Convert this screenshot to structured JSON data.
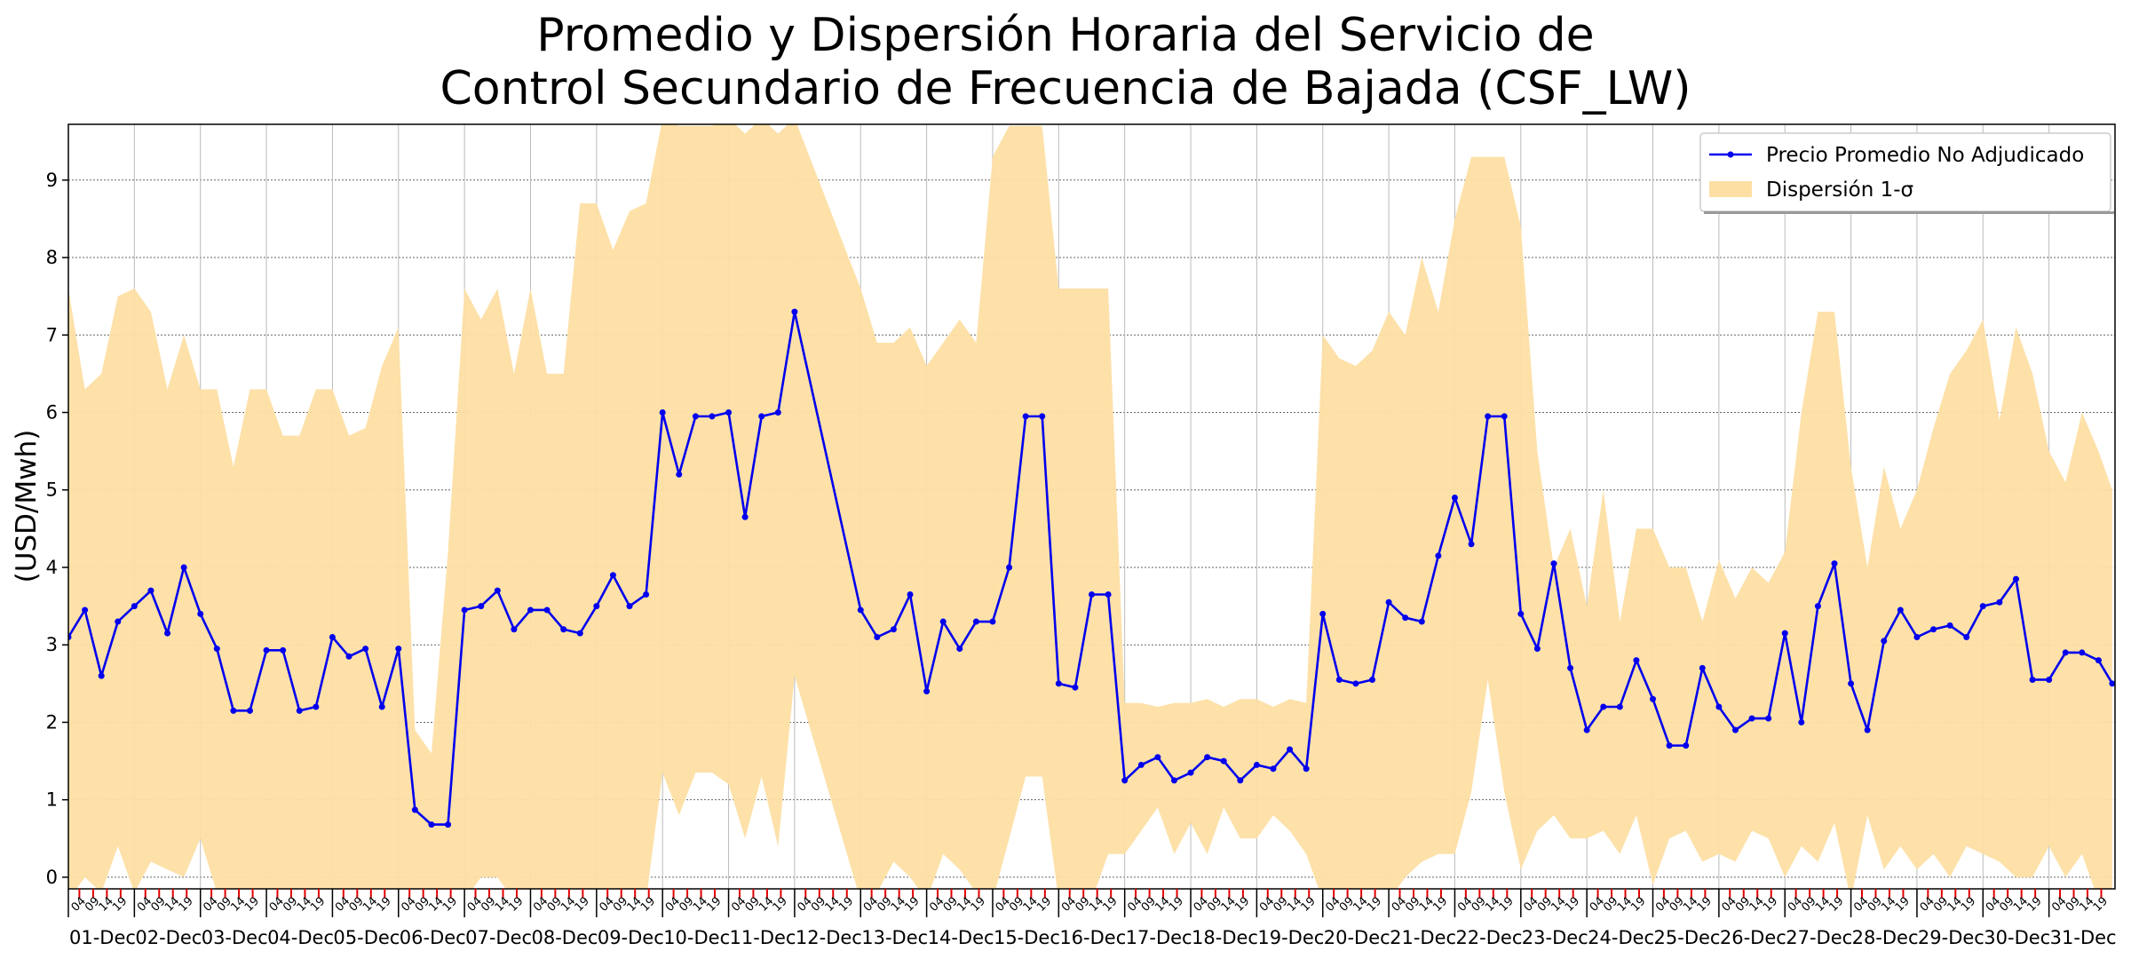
{
  "chart_data": {
    "type": "line-band",
    "title": "Promedio y Dispersión Horaria del Servicio de\nControl Secundario de Frecuencia de Bajada (CSF_LW)",
    "y_label": "(USD/Mwh)",
    "xlim": [
      0,
      744
    ],
    "ylim": [
      -0.15,
      9.72
    ],
    "yticks": [
      0,
      1,
      2,
      3,
      4,
      5,
      6,
      7,
      8,
      9
    ],
    "grid": true,
    "legend": "upper right",
    "xticks": [
      {
        "value": 0,
        "label": "01-Dec"
      },
      {
        "value": 24,
        "label": "02-Dec"
      },
      {
        "value": 48,
        "label": "03-Dec"
      },
      {
        "value": 72,
        "label": "04-Dec"
      },
      {
        "value": 96,
        "label": "05-Dec"
      },
      {
        "value": 120,
        "label": "06-Dec"
      },
      {
        "value": 144,
        "label": "07-Dec"
      },
      {
        "value": 168,
        "label": "08-Dec"
      },
      {
        "value": 192,
        "label": "09-Dec"
      },
      {
        "value": 216,
        "label": "10-Dec"
      },
      {
        "value": 240,
        "label": "11-Dec"
      },
      {
        "value": 264,
        "label": "12-Dec"
      },
      {
        "value": 288,
        "label": "13-Dec"
      },
      {
        "value": 312,
        "label": "14-Dec"
      },
      {
        "value": 336,
        "label": "15-Dec"
      },
      {
        "value": 360,
        "label": "16-Dec"
      },
      {
        "value": 384,
        "label": "17-Dec"
      },
      {
        "value": 408,
        "label": "18-Dec"
      },
      {
        "value": 432,
        "label": "19-Dec"
      },
      {
        "value": 456,
        "label": "20-Dec"
      },
      {
        "value": 480,
        "label": "21-Dec"
      },
      {
        "value": 504,
        "label": "22-Dec"
      },
      {
        "value": 528,
        "label": "23-Dec"
      },
      {
        "value": 552,
        "label": "24-Dec"
      },
      {
        "value": 576,
        "label": "25-Dec"
      },
      {
        "value": 600,
        "label": "26-Dec"
      },
      {
        "value": 624,
        "label": "27-Dec"
      },
      {
        "value": 648,
        "label": "28-Dec"
      },
      {
        "value": 672,
        "label": "29-Dec"
      },
      {
        "value": 696,
        "label": "30-Dec"
      },
      {
        "value": 720,
        "label": "31-Dec"
      }
    ],
    "minor_tick_color": "#e00000",
    "xminorticks": [
      {
        "value": 4,
        "label": "04"
      },
      {
        "value": 9,
        "label": "09"
      },
      {
        "value": 14,
        "label": "14"
      },
      {
        "value": 19,
        "label": "19"
      },
      {
        "value": 28,
        "label": "04"
      },
      {
        "value": 33,
        "label": "09"
      },
      {
        "value": 38,
        "label": "14"
      },
      {
        "value": 43,
        "label": "19"
      },
      {
        "value": 52,
        "label": "04"
      },
      {
        "value": 57,
        "label": "09"
      },
      {
        "value": 62,
        "label": "14"
      },
      {
        "value": 67,
        "label": "19"
      },
      {
        "value": 76,
        "label": "04"
      },
      {
        "value": 81,
        "label": "09"
      },
      {
        "value": 86,
        "label": "14"
      },
      {
        "value": 91,
        "label": "19"
      },
      {
        "value": 100,
        "label": "04"
      },
      {
        "value": 105,
        "label": "09"
      },
      {
        "value": 110,
        "label": "14"
      },
      {
        "value": 115,
        "label": "19"
      },
      {
        "value": 124,
        "label": "04"
      },
      {
        "value": 129,
        "label": "09"
      },
      {
        "value": 134,
        "label": "14"
      },
      {
        "value": 139,
        "label": "19"
      },
      {
        "value": 148,
        "label": "04"
      },
      {
        "value": 153,
        "label": "09"
      },
      {
        "value": 158,
        "label": "14"
      },
      {
        "value": 163,
        "label": "19"
      },
      {
        "value": 172,
        "label": "04"
      },
      {
        "value": 177,
        "label": "09"
      },
      {
        "value": 182,
        "label": "14"
      },
      {
        "value": 187,
        "label": "19"
      },
      {
        "value": 196,
        "label": "04"
      },
      {
        "value": 201,
        "label": "09"
      },
      {
        "value": 206,
        "label": "14"
      },
      {
        "value": 211,
        "label": "19"
      },
      {
        "value": 220,
        "label": "04"
      },
      {
        "value": 225,
        "label": "09"
      },
      {
        "value": 230,
        "label": "14"
      },
      {
        "value": 235,
        "label": "19"
      },
      {
        "value": 244,
        "label": "04"
      },
      {
        "value": 249,
        "label": "09"
      },
      {
        "value": 254,
        "label": "14"
      },
      {
        "value": 259,
        "label": "19"
      },
      {
        "value": 268,
        "label": "04"
      },
      {
        "value": 273,
        "label": "09"
      },
      {
        "value": 278,
        "label": "14"
      },
      {
        "value": 283,
        "label": "19"
      },
      {
        "value": 292,
        "label": "04"
      },
      {
        "value": 297,
        "label": "09"
      },
      {
        "value": 302,
        "label": "14"
      },
      {
        "value": 307,
        "label": "19"
      },
      {
        "value": 316,
        "label": "04"
      },
      {
        "value": 321,
        "label": "09"
      },
      {
        "value": 326,
        "label": "14"
      },
      {
        "value": 331,
        "label": "19"
      },
      {
        "value": 340,
        "label": "04"
      },
      {
        "value": 345,
        "label": "09"
      },
      {
        "value": 350,
        "label": "14"
      },
      {
        "value": 355,
        "label": "19"
      },
      {
        "value": 364,
        "label": "04"
      },
      {
        "value": 369,
        "label": "09"
      },
      {
        "value": 374,
        "label": "14"
      },
      {
        "value": 379,
        "label": "19"
      },
      {
        "value": 388,
        "label": "04"
      },
      {
        "value": 393,
        "label": "09"
      },
      {
        "value": 398,
        "label": "14"
      },
      {
        "value": 403,
        "label": "19"
      },
      {
        "value": 412,
        "label": "04"
      },
      {
        "value": 417,
        "label": "09"
      },
      {
        "value": 422,
        "label": "14"
      },
      {
        "value": 427,
        "label": "19"
      },
      {
        "value": 436,
        "label": "04"
      },
      {
        "value": 441,
        "label": "09"
      },
      {
        "value": 446,
        "label": "14"
      },
      {
        "value": 451,
        "label": "19"
      },
      {
        "value": 460,
        "label": "04"
      },
      {
        "value": 465,
        "label": "09"
      },
      {
        "value": 470,
        "label": "14"
      },
      {
        "value": 475,
        "label": "19"
      },
      {
        "value": 484,
        "label": "04"
      },
      {
        "value": 489,
        "label": "09"
      },
      {
        "value": 494,
        "label": "14"
      },
      {
        "value": 499,
        "label": "19"
      },
      {
        "value": 508,
        "label": "04"
      },
      {
        "value": 513,
        "label": "09"
      },
      {
        "value": 518,
        "label": "14"
      },
      {
        "value": 523,
        "label": "19"
      },
      {
        "value": 532,
        "label": "04"
      },
      {
        "value": 537,
        "label": "09"
      },
      {
        "value": 542,
        "label": "14"
      },
      {
        "value": 547,
        "label": "19"
      },
      {
        "value": 556,
        "label": "04"
      },
      {
        "value": 561,
        "label": "09"
      },
      {
        "value": 566,
        "label": "14"
      },
      {
        "value": 571,
        "label": "19"
      },
      {
        "value": 580,
        "label": "04"
      },
      {
        "value": 585,
        "label": "09"
      },
      {
        "value": 590,
        "label": "14"
      },
      {
        "value": 595,
        "label": "19"
      },
      {
        "value": 604,
        "label": "04"
      },
      {
        "value": 609,
        "label": "09"
      },
      {
        "value": 614,
        "label": "14"
      },
      {
        "value": 619,
        "label": "19"
      },
      {
        "value": 628,
        "label": "04"
      },
      {
        "value": 633,
        "label": "09"
      },
      {
        "value": 638,
        "label": "14"
      },
      {
        "value": 643,
        "label": "19"
      },
      {
        "value": 652,
        "label": "04"
      },
      {
        "value": 657,
        "label": "09"
      },
      {
        "value": 662,
        "label": "14"
      },
      {
        "value": 667,
        "label": "19"
      },
      {
        "value": 676,
        "label": "04"
      },
      {
        "value": 681,
        "label": "09"
      },
      {
        "value": 686,
        "label": "14"
      },
      {
        "value": 691,
        "label": "19"
      },
      {
        "value": 700,
        "label": "04"
      },
      {
        "value": 705,
        "label": "09"
      },
      {
        "value": 710,
        "label": "14"
      },
      {
        "value": 715,
        "label": "19"
      },
      {
        "value": 724,
        "label": "04"
      },
      {
        "value": 729,
        "label": "09"
      },
      {
        "value": 734,
        "label": "14"
      },
      {
        "value": 739,
        "label": "19"
      }
    ],
    "x": [
      0,
      6,
      12,
      18,
      24,
      30,
      36,
      42,
      48,
      54,
      60,
      66,
      72,
      78,
      84,
      90,
      96,
      102,
      108,
      114,
      120,
      126,
      132,
      138,
      144,
      150,
      156,
      162,
      168,
      174,
      180,
      186,
      192,
      198,
      204,
      210,
      216,
      222,
      228,
      234,
      240,
      246,
      252,
      258,
      264,
      288,
      294,
      300,
      306,
      312,
      318,
      324,
      330,
      336,
      342,
      348,
      354,
      360,
      366,
      372,
      378,
      384,
      390,
      396,
      402,
      408,
      414,
      420,
      426,
      432,
      438,
      444,
      450,
      456,
      462,
      468,
      474,
      480,
      486,
      492,
      498,
      504,
      510,
      516,
      522,
      528,
      534,
      540,
      546,
      552,
      558,
      564,
      570,
      576,
      582,
      588,
      594,
      600,
      606,
      612,
      618,
      624,
      630,
      636,
      642,
      648,
      654,
      660,
      666,
      672,
      678,
      684,
      690,
      696,
      702,
      708,
      714,
      720,
      726,
      732,
      738,
      743
    ],
    "series": [
      {
        "name": "Precio Promedio No Adjudicado",
        "color": "#0000ee",
        "values": [
          3.1,
          3.45,
          2.6,
          3.3,
          3.5,
          3.7,
          3.15,
          4.0,
          3.4,
          2.95,
          2.15,
          2.15,
          2.93,
          2.93,
          2.15,
          2.2,
          3.1,
          2.85,
          2.95,
          2.2,
          2.95,
          0.87,
          0.68,
          0.68,
          3.45,
          3.5,
          3.7,
          3.2,
          3.45,
          3.45,
          3.2,
          3.15,
          3.5,
          3.9,
          3.5,
          3.65,
          6.0,
          5.2,
          5.95,
          5.95,
          6.0,
          4.65,
          5.95,
          6.0,
          7.3,
          3.45,
          3.1,
          3.2,
          3.65,
          2.4,
          3.3,
          2.95,
          3.3,
          3.3,
          4.0,
          5.95,
          5.95,
          2.5,
          2.45,
          3.65,
          3.65,
          1.25,
          1.45,
          1.55,
          1.25,
          1.35,
          1.55,
          1.5,
          1.25,
          1.45,
          1.4,
          1.65,
          1.4,
          3.4,
          2.55,
          2.5,
          2.55,
          3.55,
          3.35,
          3.3,
          4.15,
          4.9,
          4.3,
          5.95,
          5.95,
          3.4,
          2.95,
          4.05,
          2.7,
          1.9,
          2.2,
          2.2,
          2.8,
          2.3,
          1.7,
          1.7,
          2.7,
          2.2,
          1.9,
          2.05,
          2.05,
          3.15,
          2.0,
          3.5,
          4.05,
          2.5,
          1.9,
          3.05,
          3.45,
          3.1,
          3.2,
          3.25,
          3.1,
          3.5,
          3.55,
          3.85,
          2.55,
          2.55,
          2.9,
          2.9,
          2.8,
          2.5
        ]
      },
      {
        "name": "Dispersión 1-σ",
        "color": "#fddfa4",
        "upper": [
          7.6,
          6.3,
          6.5,
          7.5,
          7.6,
          7.3,
          6.3,
          7.0,
          6.3,
          6.3,
          5.3,
          6.3,
          6.3,
          5.7,
          5.7,
          6.3,
          6.3,
          5.7,
          5.8,
          6.6,
          7.1,
          1.9,
          1.6,
          4.2,
          7.6,
          7.2,
          7.6,
          6.5,
          7.6,
          6.5,
          6.5,
          8.7,
          8.7,
          8.1,
          8.6,
          8.7,
          9.8,
          9.7,
          9.7,
          9.7,
          9.8,
          9.6,
          9.8,
          9.6,
          9.8,
          7.6,
          6.9,
          6.9,
          7.1,
          6.6,
          6.9,
          7.2,
          6.9,
          9.3,
          9.7,
          9.7,
          9.7,
          7.6,
          7.6,
          7.6,
          7.6,
          2.25,
          2.25,
          2.2,
          2.25,
          2.25,
          2.3,
          2.2,
          2.3,
          2.3,
          2.2,
          2.3,
          2.25,
          7.0,
          6.7,
          6.6,
          6.8,
          7.3,
          7.0,
          8.0,
          7.3,
          8.5,
          9.3,
          9.3,
          9.3,
          8.4,
          5.5,
          4.0,
          4.5,
          3.5,
          5.0,
          3.3,
          4.5,
          4.5,
          4.0,
          4.0,
          3.3,
          4.1,
          3.6,
          4.0,
          3.8,
          4.2,
          6.0,
          7.3,
          7.3,
          5.3,
          4.0,
          5.3,
          4.5,
          5.0,
          5.8,
          6.5,
          6.8,
          7.2,
          5.9,
          7.1,
          6.5,
          5.5,
          5.1,
          6.0,
          5.5,
          5.0
        ],
        "lower": [
          -0.3,
          0,
          -0.2,
          0.4,
          -0.2,
          0.2,
          0.1,
          0,
          0.5,
          -0.2,
          -0.3,
          -0.3,
          -0.3,
          -0.2,
          -0.3,
          -0.3,
          -0.3,
          -0.3,
          -0.3,
          -0.3,
          -0.3,
          -0.3,
          -0.3,
          -0.3,
          -0.3,
          0,
          0,
          -0.3,
          -0.3,
          -0.3,
          -0.3,
          -0.3,
          -0.3,
          -0.3,
          -0.3,
          -0.3,
          1.35,
          0.8,
          1.35,
          1.35,
          1.2,
          0.5,
          1.3,
          0.4,
          2.6,
          -0.3,
          -0.2,
          0.2,
          0,
          -0.3,
          0.3,
          0.1,
          -0.2,
          -0.3,
          0.5,
          1.3,
          1.3,
          -0.3,
          -0.3,
          -0.3,
          0.3,
          0.3,
          0.6,
          0.9,
          0.3,
          0.7,
          0.3,
          0.9,
          0.5,
          0.5,
          0.8,
          0.6,
          0.3,
          -0.3,
          -0.3,
          -0.3,
          -0.3,
          -0.3,
          0,
          0.2,
          0.3,
          0.3,
          1.1,
          2.55,
          1.1,
          0.1,
          0.6,
          0.8,
          0.5,
          0.5,
          0.6,
          0.3,
          0.8,
          -0.1,
          0.5,
          0.6,
          0.2,
          0.3,
          0.2,
          0.6,
          0.5,
          0,
          0.4,
          0.2,
          0.7,
          -0.3,
          0.8,
          0.1,
          0.4,
          0.1,
          0.3,
          0,
          0.4,
          0.3,
          0.2,
          0,
          0,
          0.4,
          0,
          0.3,
          -0.3,
          -0.2
        ]
      }
    ]
  }
}
